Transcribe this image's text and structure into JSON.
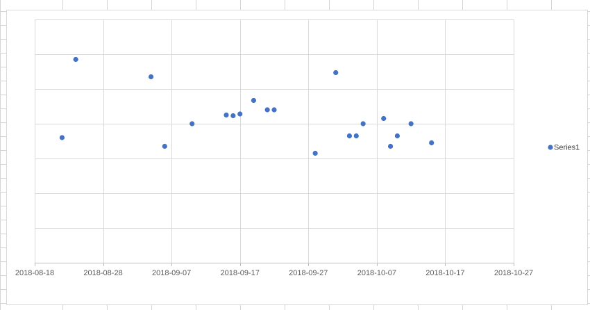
{
  "chart_data": {
    "type": "scatter",
    "title": "",
    "xlabel": "",
    "ylabel": "",
    "x_axis": {
      "min": "2018-08-18",
      "max": "2018-10-27",
      "tick_labels": [
        "2018-08-18",
        "2018-08-28",
        "2018-09-07",
        "2018-09-17",
        "2018-09-27",
        "2018-10-07",
        "2018-10-17",
        "2018-10-27"
      ]
    },
    "y_axis": {
      "min": 0,
      "max": 7,
      "tick_labels_shown": false
    },
    "grid": true,
    "legend_position": "right",
    "series": [
      {
        "name": "Series1",
        "color": "#4472c4",
        "points": [
          {
            "x": "2018-08-22",
            "y": 3.6
          },
          {
            "x": "2018-08-24",
            "y": 5.85
          },
          {
            "x": "2018-09-04",
            "y": 5.35
          },
          {
            "x": "2018-09-06",
            "y": 3.35
          },
          {
            "x": "2018-09-10",
            "y": 4.0
          },
          {
            "x": "2018-09-15",
            "y": 4.25
          },
          {
            "x": "2018-09-16",
            "y": 4.23
          },
          {
            "x": "2018-09-17",
            "y": 4.28
          },
          {
            "x": "2018-09-19",
            "y": 4.67
          },
          {
            "x": "2018-09-21",
            "y": 4.4
          },
          {
            "x": "2018-09-22",
            "y": 4.4
          },
          {
            "x": "2018-09-28",
            "y": 3.15
          },
          {
            "x": "2018-10-01",
            "y": 5.47
          },
          {
            "x": "2018-10-03",
            "y": 3.65
          },
          {
            "x": "2018-10-04",
            "y": 3.65
          },
          {
            "x": "2018-10-05",
            "y": 4.0
          },
          {
            "x": "2018-10-08",
            "y": 4.15
          },
          {
            "x": "2018-10-09",
            "y": 3.35
          },
          {
            "x": "2018-10-10",
            "y": 3.65
          },
          {
            "x": "2018-10-12",
            "y": 4.0
          },
          {
            "x": "2018-10-15",
            "y": 3.45
          }
        ]
      }
    ]
  }
}
